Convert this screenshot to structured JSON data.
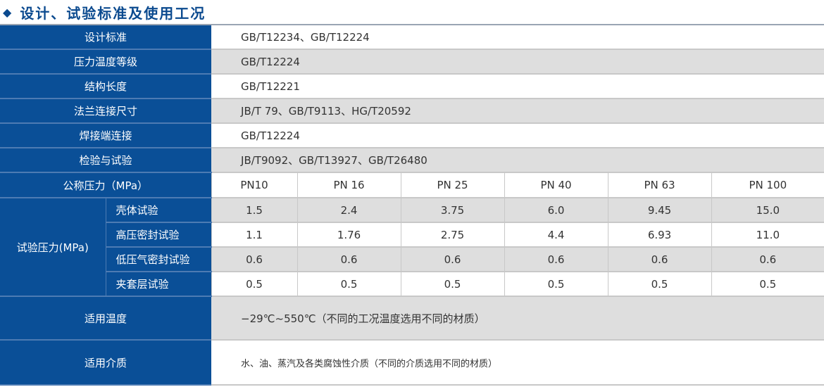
{
  "title": "设计、试验标准及使用工况",
  "rows": [
    {
      "label": "设计标准",
      "value": "GB/T12234、GB/T12224"
    },
    {
      "label": "压力温度等级",
      "value": "GB/T12224"
    },
    {
      "label": "结构长度",
      "value": "GB/T12221"
    },
    {
      "label": "法兰连接尺寸",
      "value": "JB/T 79、GB/T9113、HG/T20592"
    },
    {
      "label": "焊接端连接",
      "value": "GB/T12224"
    },
    {
      "label": "检验与试验",
      "value": "JB/T9092、GB/T13927、GB/T26480"
    }
  ],
  "pressure": {
    "label": "公称压力（MPa）",
    "columns": [
      "PN10",
      "PN 16",
      "PN 25",
      "PN 40",
      "PN 63",
      "PN 100"
    ]
  },
  "test": {
    "label": "试验压力(MPa)",
    "rows": [
      {
        "label": "壳体试验",
        "values": [
          "1.5",
          "2.4",
          "3.75",
          "6.0",
          "9.45",
          "15.0"
        ]
      },
      {
        "label": "高压密封试验",
        "values": [
          "1.1",
          "1.76",
          "2.75",
          "4.4",
          "6.93",
          "11.0"
        ]
      },
      {
        "label": "低压气密封试验",
        "values": [
          "0.6",
          "0.6",
          "0.6",
          "0.6",
          "0.6",
          "0.6"
        ]
      },
      {
        "label": "夹套层试验",
        "values": [
          "0.5",
          "0.5",
          "0.5",
          "0.5",
          "0.5",
          "0.5"
        ]
      }
    ]
  },
  "temperature": {
    "label": "适用温度",
    "value": "−29℃~550℃（不同的工况温度选用不同的材质）"
  },
  "medium": {
    "label": "适用介质",
    "value": "水、油、蒸汽及各类腐蚀性介质（不同的介质选用不同的材质）"
  }
}
